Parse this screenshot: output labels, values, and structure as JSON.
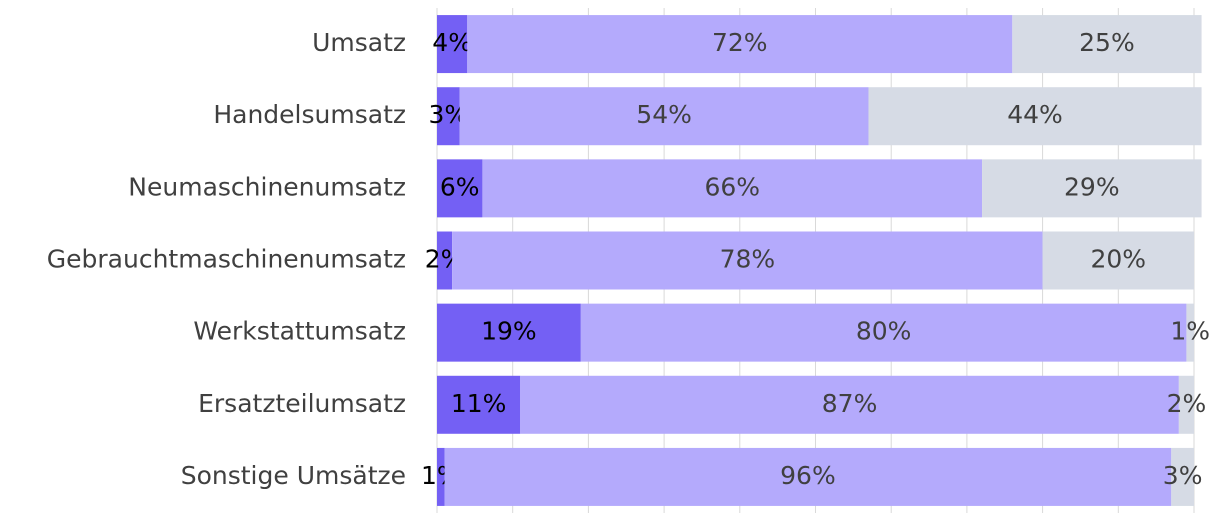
{
  "chart_data": {
    "type": "bar",
    "orientation": "horizontal",
    "stacked": true,
    "categories": [
      "Umsatz",
      "Handelsumsatz",
      "Neumaschinenumsatz",
      "Gebrauchtmaschinenumsatz",
      "Werkstattumsatz",
      "Ersatzteilumsatz",
      "Sonstige Umsätze"
    ],
    "series": [
      {
        "color": "#7460f4",
        "values": [
          4,
          3,
          6,
          2,
          19,
          11,
          1
        ],
        "value_labels": [
          "4%",
          "3%",
          "6%",
          "2%",
          "19%",
          "11%",
          "1%"
        ]
      },
      {
        "color": "#b4aafc",
        "values": [
          72,
          54,
          66,
          78,
          80,
          87,
          96
        ],
        "value_labels": [
          "72%",
          "54%",
          "66%",
          "78%",
          "80%",
          "87%",
          "96%"
        ]
      },
      {
        "color": "#d6dbe5",
        "values": [
          25,
          44,
          29,
          20,
          1,
          2,
          3
        ],
        "value_labels": [
          "25%",
          "44%",
          "29%",
          "20%",
          "1%",
          "2%",
          "3%"
        ]
      }
    ],
    "xlim": [
      0,
      100
    ],
    "xticks": [
      0,
      10,
      20,
      30,
      40,
      50,
      60,
      70,
      80,
      90,
      100
    ],
    "grid": true
  }
}
